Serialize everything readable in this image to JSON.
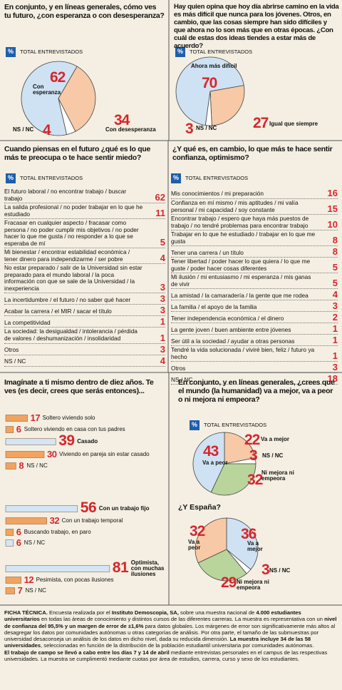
{
  "chart_data": [
    {
      "type": "pie",
      "title": "En conjunto, y en líneas generales, cómo ves tu futuro, ¿con esperanza o con desesperanza?",
      "badge": "%",
      "subtitle": "TOTAL ENTREVISTADOS",
      "categories": [
        "Con esperanza",
        "Con desesperanza",
        "NS / NC"
      ],
      "values": [
        62,
        34,
        4
      ],
      "colors": [
        "#cfe2f3",
        "#f7c9a6",
        "#ffffff"
      ]
    },
    {
      "type": "pie",
      "title": "Hay quien opina que hoy día abrirse camino en la vida es más difícil que nunca para los jóvenes. Otros, en cambio, que las cosas siempre han sido difíciles y que ahora no lo son más que en otras épocas. ¿Con cuál de estas dos ideas tiendes a estar más de acuerdo?",
      "badge": "%",
      "subtitle": "TOTAL ENTREVISTADOS",
      "categories": [
        "Ahora más difícil",
        "Igual que siempre",
        "NS / NC"
      ],
      "values": [
        70,
        27,
        3
      ],
      "colors": [
        "#cfe2f3",
        "#f7c9a6",
        "#ffffff"
      ]
    },
    {
      "type": "list",
      "title": "Cuando piensas en el futuro ¿qué es lo que más te preocupa o te hace sentir miedo?",
      "badge": "%",
      "subtitle": "TOTAL ENTREVISTADOS",
      "categories": [
        "El futuro laboral / no encontrar trabajo / buscar trabajo",
        "La salida profesional / no poder trabajar en lo que he estudiado",
        "Fracasar en cualquier aspecto / fracasar como persona / no poder cumplir mis objetivos / no poder hacer lo que me gusta / no responder a lo que se esperaba de mí",
        "Mi bienestar / encontrar estabilidad económica / tener dinero para independizarme / ser pobre",
        "No estar preparado / salir de la Universidad sin estar preparado para el mundo laboral / la poca información con que se sale de la Universidad / la inexperiencia",
        "La incertidumbre / el futuro / no saber qué hacer",
        "Acabar la carrera / el MIR / sacar el título",
        "La competitividad",
        "La sociedad: la desigualdad / intolerancia / pérdida de valores / deshumanización / insolidaridad",
        "Otros",
        "NS / NC"
      ],
      "values": [
        62,
        11,
        5,
        4,
        3,
        3,
        3,
        1,
        1,
        3,
        4
      ]
    },
    {
      "type": "list",
      "title": "¿Y qué es, en cambio, lo que más te hace sentir confianza, optimismo?",
      "badge": "%",
      "subtitle": "TOTAL ENTREVISTADOS",
      "categories": [
        "Mis conocimientos / mi preparación",
        "Confianza en mí mismo / mis aptitudes / mi valía personal / mi capacidad / soy constante",
        "Encontrar trabajo / espero que haya más puestos de trabajo / no tendré problemas para encontrar trabajo",
        "Trabajar en lo que he estudiado / trabajar en lo que me gusta",
        "Tener una carrera / un título",
        "Tener libertad / poder hacer lo que quiera / lo que me guste / poder hacer cosas diferentes",
        "Mi ilusión / mi entusiasmo / mi esperanza / mis ganas de vivir",
        "La amistad / la camaradería / la gente que me rodea",
        "La familia / el apoyo de la familia",
        "Tener independencia económica / el dinero",
        "La gente joven / buen ambiente entre jóvenes",
        "Ser útil a la sociedad / ayudar a otras personas",
        "Tendré la vida solucionada / viviré bien, feliz / futuro ya hecho",
        "Otros",
        "NS / NC"
      ],
      "values": [
        16,
        15,
        10,
        8,
        8,
        5,
        5,
        4,
        3,
        2,
        1,
        1,
        1,
        3,
        18
      ]
    },
    {
      "type": "bar",
      "title": "Imagínate a ti mismo dentro de diez años. Te ves (es decir, crees que serás entonces)...",
      "groups": [
        {
          "categories": [
            "Soltero viviendo solo",
            "Soltero viviendo en casa con tus padres",
            "Casado",
            "Viviendo en pareja sin estar casado",
            "NS / NC"
          ],
          "values": [
            17,
            6,
            39,
            30,
            8
          ],
          "colors": [
            "#f2a35e",
            "#f2a35e",
            "#d4e6f5",
            "#f2a35e",
            "#f2a35e"
          ]
        },
        {
          "categories": [
            "Con un trabajo fijo",
            "Con un trabajo temporal",
            "Buscando trabajo, en paro",
            "NS / NC"
          ],
          "values": [
            56,
            32,
            6,
            6
          ],
          "colors": [
            "#d4e6f5",
            "#f2a35e",
            "#f2a35e",
            "#d4e6f5"
          ]
        },
        {
          "categories": [
            "Optimista, con muchas ilusiones",
            "Pesimista, con pocas ilusiones",
            "NS / NC"
          ],
          "values": [
            81,
            12,
            7
          ],
          "colors": [
            "#d4e6f5",
            "#f2a35e",
            "#f2a35e"
          ]
        }
      ]
    },
    {
      "type": "pie",
      "title": "En conjunto, y en líneas generales, ¿crees que el mundo (la humanidad) va a mejor, va a peor o ni mejora ni empeora?",
      "badge": "%",
      "subtitle": "TOTAL ENTREVISTADOS",
      "categories": [
        "Va a mejor",
        "NS / NC",
        "Ni mejora ni empeora",
        "Va a peor"
      ],
      "values": [
        22,
        3,
        32,
        43
      ],
      "colors": [
        "#f7c9a6",
        "#ffffff",
        "#b9d59c",
        "#cfe2f3"
      ]
    },
    {
      "type": "pie",
      "title": "¿Y España?",
      "categories": [
        "Va a mejor",
        "NS / NC",
        "Ni mejora ni empeora",
        "Va a peor"
      ],
      "values": [
        36,
        3,
        29,
        32
      ],
      "colors": [
        "#cfe2f3",
        "#ffffff",
        "#b9d59c",
        "#f7c9a6"
      ]
    }
  ],
  "footer": {
    "paragraphs": [
      [
        {
          "text": "FICHA TÉCNICA.",
          "bold": true
        },
        {
          "text": " Encuesta realizada por el ",
          "bold": false
        },
        {
          "text": "Instituto Demoscopia, SA,",
          "bold": true
        },
        {
          "text": " sobre una muestra nacional de ",
          "bold": false
        },
        {
          "text": "4.000 estudiantes universitarios",
          "bold": true
        },
        {
          "text": " en todas las áreas de conocimiento y distintos cursos de las diferentes carreras. La muestra es representativa con un ",
          "bold": false
        },
        {
          "text": "nivel de confianza del 95,5% y un margen de error de ±1,6%",
          "bold": true
        },
        {
          "text": " para datos globales. Los márgenes de error son significativamente más altos al desagregar los datos por comunidades autónomas u otras categorías de análisis. Por otra parte, el tamaño de las submuestras por universidad desaconseja un análisis de los datos en dicho nivel, dada su reducida dimensión. ",
          "bold": false
        },
        {
          "text": "La muestra incluye 34 de las 58 universidades",
          "bold": true
        },
        {
          "text": ", seleccionadas en función de la distribución de la población estudiantil universitaria por comunidades autónomas.",
          "bold": false
        }
      ],
      [
        {
          "text": "El trabajo de campo se llevó a cabo entre los días 7 y 14 de abril",
          "bold": true
        },
        {
          "text": " mediante entrevistas personales en el campus de las respectivas universidades. La muestra se cumplimentó mediante cuotas por área de estudios, carrera, curso y sexo de los estudiantes.",
          "bold": false
        }
      ]
    ]
  }
}
